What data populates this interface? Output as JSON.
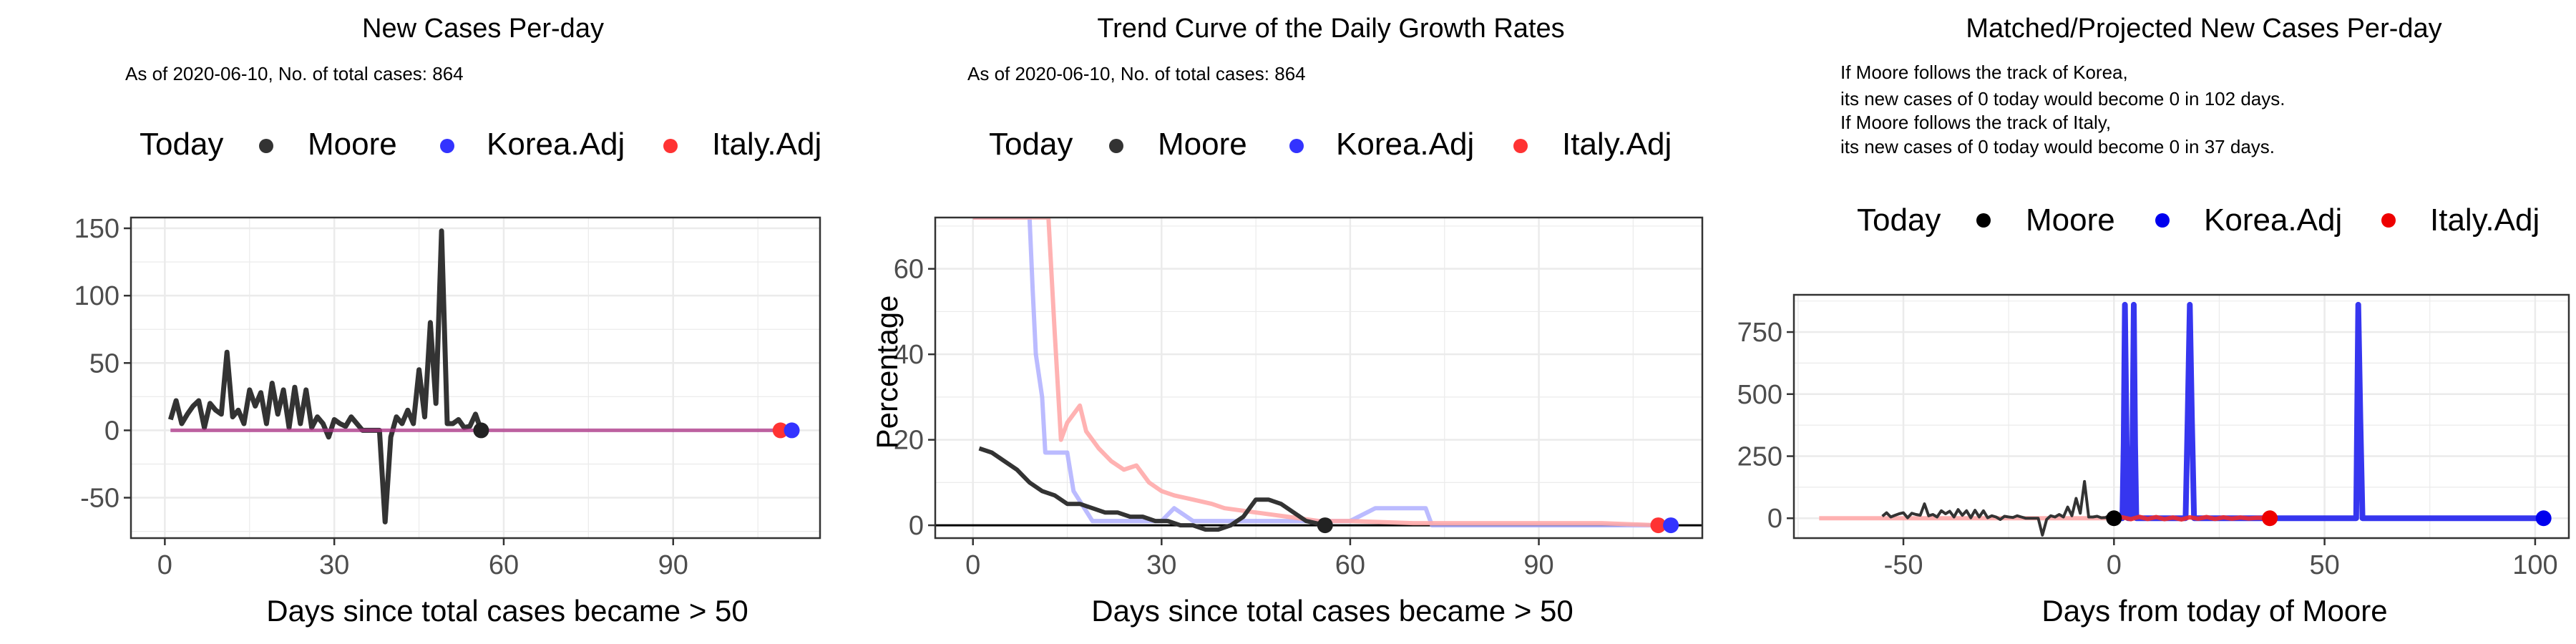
{
  "colors": {
    "moore": "#333333",
    "korea": "#3333FF",
    "italy": "#FF3333",
    "korea_light": "#AAAAFF",
    "italy_light": "#FFAAAA",
    "purple": "#B266B2",
    "grid": "#EBEBEB",
    "panel_border": "#333333"
  },
  "chart_data": [
    {
      "type": "line",
      "title": "New Cases Per-day",
      "subtitle": "As of 2020-06-10, No. of total cases: 864",
      "xlabel": "Days since total cases became > 50",
      "ylabel": "",
      "xlim": [
        -6,
        116
      ],
      "ylim": [
        -80,
        158
      ],
      "xticks": [
        0,
        30,
        60,
        90
      ],
      "xtick_labels": [
        "0",
        "30",
        "60",
        "90"
      ],
      "yticks": [
        -50,
        0,
        50,
        100,
        150
      ],
      "ytick_labels": [
        "-50",
        "0",
        "50",
        "100",
        "150"
      ],
      "grid": true,
      "legend": {
        "position": "top",
        "title": "Today",
        "entries": [
          "Moore",
          "Korea.Adj",
          "Italy.Adj"
        ]
      },
      "series": [
        {
          "name": "Moore",
          "x": [
            1,
            2,
            3,
            4,
            5,
            6,
            7,
            8,
            9,
            10,
            11,
            12,
            13,
            14,
            15,
            16,
            17,
            18,
            19,
            20,
            21,
            22,
            23,
            24,
            25,
            26,
            27,
            28,
            29,
            30,
            31,
            32,
            33,
            34,
            35,
            36,
            37,
            38,
            39,
            40,
            41,
            42,
            43,
            44,
            45,
            46,
            47,
            48,
            49,
            50,
            51,
            52,
            53,
            54,
            55,
            56
          ],
          "y": [
            8,
            22,
            5,
            12,
            18,
            22,
            2,
            20,
            15,
            12,
            58,
            10,
            15,
            5,
            30,
            18,
            28,
            5,
            35,
            12,
            30,
            2,
            32,
            5,
            30,
            2,
            10,
            5,
            -5,
            8,
            5,
            3,
            10,
            5,
            0,
            0,
            0,
            0,
            -68,
            -5,
            10,
            5,
            15,
            5,
            45,
            10,
            80,
            20,
            148,
            5,
            5,
            8,
            2,
            3,
            12,
            0
          ]
        },
        {
          "name": "Korea.Adj",
          "x": [
            1,
            5,
            10,
            15,
            20,
            25,
            30,
            35,
            40,
            45,
            50,
            55,
            60,
            65,
            70,
            75,
            80,
            85,
            90,
            95,
            100,
            105,
            111
          ],
          "y": [
            0,
            0,
            0,
            0,
            0,
            0,
            0,
            0,
            0,
            0,
            0,
            0,
            0,
            0,
            0,
            0,
            0,
            0,
            0,
            0,
            0,
            0,
            0
          ]
        },
        {
          "name": "Italy.Adj",
          "x": [
            1,
            5,
            10,
            15,
            20,
            25,
            30,
            35,
            40,
            45,
            50,
            55,
            60,
            65,
            70,
            75,
            80,
            85,
            90,
            95,
            100,
            105,
            109
          ],
          "y": [
            0,
            0,
            0,
            0,
            0,
            0,
            0,
            0,
            0,
            0,
            0,
            0,
            0,
            0,
            0,
            0,
            0,
            0,
            0,
            0,
            0,
            0,
            0
          ]
        }
      ],
      "today_points": [
        {
          "name": "Moore",
          "x": 56,
          "y": 0
        },
        {
          "name": "Italy.Adj",
          "x": 109,
          "y": 0
        },
        {
          "name": "Korea.Adj",
          "x": 111,
          "y": 0
        }
      ]
    },
    {
      "type": "line",
      "title": "Trend Curve of the Daily Growth Rates",
      "subtitle": "As of 2020-06-10, No. of total cases: 864",
      "xlabel": "Days since total cases became > 50",
      "ylabel": "Percentage",
      "xlim": [
        -6,
        116
      ],
      "ylim": [
        -3,
        72
      ],
      "xticks": [
        0,
        30,
        60,
        90
      ],
      "xtick_labels": [
        "0",
        "30",
        "60",
        "90"
      ],
      "yticks": [
        0,
        20,
        40,
        60
      ],
      "ytick_labels": [
        "0",
        "20",
        "40",
        "60"
      ],
      "grid": true,
      "hline": 0,
      "legend": {
        "position": "top",
        "title": "Today",
        "entries": [
          "Moore",
          "Korea.Adj",
          "Italy.Adj"
        ]
      },
      "series": [
        {
          "name": "Korea.Adj",
          "x": [
            0,
            9,
            9.5,
            10,
            11,
            11.5,
            15,
            16,
            19,
            22,
            25,
            30,
            32,
            35,
            40,
            45,
            50,
            55,
            60,
            64,
            72,
            73,
            80,
            90,
            100,
            111
          ],
          "y": [
            72,
            72,
            55,
            40,
            30,
            17,
            17,
            8,
            1,
            1,
            1,
            1,
            4,
            1,
            1,
            1,
            1,
            1,
            1,
            4,
            4,
            0,
            0,
            0,
            0,
            0
          ]
        },
        {
          "name": "Italy.Adj",
          "x": [
            0,
            12,
            13,
            14,
            15,
            17,
            18,
            19,
            20,
            22,
            24,
            26,
            28,
            30,
            32,
            35,
            38,
            40,
            45,
            50,
            55,
            60,
            70,
            80,
            90,
            100,
            109
          ],
          "y": [
            72,
            72,
            45,
            20,
            24,
            28,
            22,
            20,
            18,
            15,
            13,
            14,
            10,
            8,
            7,
            6,
            5,
            4,
            3,
            2,
            1,
            1,
            0.5,
            0.5,
            0.5,
            0.5,
            0
          ]
        },
        {
          "name": "Moore",
          "x": [
            1,
            3,
            5,
            7,
            9,
            11,
            13,
            15,
            17,
            19,
            21,
            23,
            25,
            27,
            29,
            31,
            33,
            35,
            37,
            39,
            41,
            43,
            45,
            47,
            49,
            51,
            53,
            56
          ],
          "y": [
            18,
            17,
            15,
            13,
            10,
            8,
            7,
            5,
            5,
            4,
            3,
            3,
            2,
            2,
            1,
            1,
            0,
            0,
            -1,
            -1,
            0,
            2,
            6,
            6,
            5,
            3,
            1,
            0
          ]
        }
      ],
      "today_points": [
        {
          "name": "Moore",
          "x": 56,
          "y": 0
        },
        {
          "name": "Italy.Adj",
          "x": 109,
          "y": 0
        },
        {
          "name": "Korea.Adj",
          "x": 111,
          "y": 0
        }
      ]
    },
    {
      "type": "line",
      "title": "Matched/Projected New Cases Per-day",
      "subtitle_lines": [
        "If Moore follows the track of Korea,",
        "its new cases of 0 today would become 0 in 102 days.",
        "If Moore follows the track of Italy,",
        "its new cases of 0 today would become 0 in 37 days."
      ],
      "xlabel": "Days from today of Moore",
      "ylabel": "",
      "xlim": [
        -76,
        108
      ],
      "ylim": [
        -80,
        900
      ],
      "xticks": [
        -50,
        0,
        50,
        100
      ],
      "xtick_labels": [
        "-50",
        "0",
        "50",
        "100"
      ],
      "yticks": [
        0,
        250,
        500,
        750
      ],
      "ytick_labels": [
        "0",
        "250",
        "500",
        "750"
      ],
      "grid": true,
      "legend": {
        "position": "top",
        "title": "Today",
        "entries": [
          "Moore",
          "Korea.Adj",
          "Italy.Adj"
        ]
      },
      "series": [
        {
          "name": "Italy.Adj (matched)",
          "x": [
            -70,
            -60,
            -50,
            -40,
            -30,
            -20,
            -10,
            0
          ],
          "y": [
            0,
            0,
            0,
            0,
            0,
            0,
            0,
            0
          ]
        },
        {
          "name": "Moore",
          "x": [
            -55,
            -54,
            -53,
            -52,
            -51,
            -50,
            -49,
            -48,
            -47,
            -46,
            -45,
            -44,
            -43,
            -42,
            -41,
            -40,
            -39,
            -38,
            -37,
            -36,
            -35,
            -34,
            -33,
            -32,
            -31,
            -30,
            -29,
            -28,
            -27,
            -26,
            -25,
            -24,
            -23,
            -22,
            -21,
            -20,
            -19,
            -18,
            -17,
            -16,
            -15,
            -14,
            -13,
            -12,
            -11,
            -10,
            -9,
            -8,
            -7,
            -6,
            -5,
            -4,
            -3,
            -2,
            -1,
            0
          ],
          "y": [
            8,
            22,
            5,
            12,
            18,
            22,
            2,
            20,
            15,
            12,
            58,
            10,
            15,
            5,
            30,
            18,
            28,
            5,
            35,
            12,
            30,
            2,
            32,
            5,
            30,
            2,
            10,
            5,
            -5,
            8,
            5,
            3,
            10,
            5,
            0,
            0,
            0,
            0,
            -68,
            -5,
            10,
            5,
            15,
            5,
            45,
            10,
            80,
            20,
            148,
            5,
            5,
            8,
            2,
            3,
            12,
            0
          ]
        },
        {
          "name": "Korea.Adj",
          "x": [
            0,
            2,
            2.3,
            2.6,
            3,
            3.3,
            3.6,
            4,
            4.4,
            4.7,
            5,
            5.3,
            5.6,
            6,
            15,
            17,
            17.5,
            18,
            18.5,
            19,
            56,
            57.5,
            58,
            58.5,
            59,
            102
          ],
          "y": [
            0,
            0,
            300,
            860,
            300,
            0,
            0,
            0,
            300,
            860,
            300,
            0,
            0,
            0,
            0,
            0,
            400,
            860,
            400,
            0,
            0,
            0,
            860,
            400,
            0,
            0
          ]
        },
        {
          "name": "Italy.Adj",
          "x": [
            0,
            2,
            4,
            6,
            8,
            10,
            12,
            14,
            16,
            18,
            20,
            22,
            24,
            26,
            28,
            30,
            32,
            34,
            37
          ],
          "y": [
            0,
            4,
            -4,
            6,
            -3,
            5,
            -4,
            3,
            -5,
            4,
            -2,
            5,
            -3,
            4,
            -2,
            3,
            -1,
            2,
            0
          ]
        }
      ],
      "today_points": [
        {
          "name": "Moore",
          "x": 0,
          "y": 0
        },
        {
          "name": "Italy.Adj",
          "x": 37,
          "y": 0
        },
        {
          "name": "Korea.Adj",
          "x": 102,
          "y": 0
        }
      ]
    }
  ]
}
